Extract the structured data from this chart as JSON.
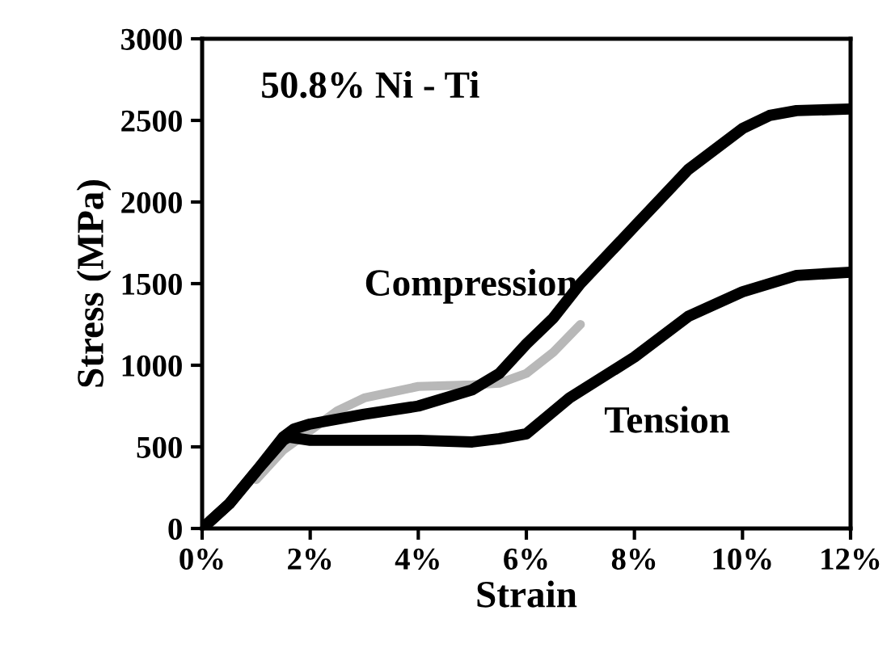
{
  "chart_data": {
    "type": "line",
    "title": "50.8% Ni - Ti",
    "xlabel": "Strain",
    "ylabel": "Stress (MPa)",
    "series": [
      {
        "name": "Compression",
        "color": "#000000",
        "x": [
          0,
          0.5,
          1,
          1.5,
          1.7,
          2,
          3,
          4,
          5,
          5.5,
          6,
          6.5,
          7,
          8,
          9,
          10,
          10.5,
          11,
          12
        ],
        "values": [
          0,
          150,
          350,
          560,
          610,
          640,
          700,
          750,
          850,
          950,
          1130,
          1290,
          1500,
          1850,
          2200,
          2450,
          2530,
          2560,
          2570
        ]
      },
      {
        "name": "Tension",
        "color": "#000000",
        "x": [
          0,
          0.5,
          1,
          1.5,
          1.6,
          2,
          3,
          4,
          5,
          5.5,
          6,
          6.8,
          8,
          9,
          10,
          11,
          12
        ],
        "values": [
          0,
          150,
          350,
          540,
          560,
          540,
          540,
          540,
          530,
          550,
          580,
          800,
          1050,
          1300,
          1450,
          1550,
          1570
        ]
      },
      {
        "color": "#b8b8b8",
        "x": [
          1,
          1.5,
          2,
          2.5,
          3,
          4,
          5,
          5.5,
          6,
          6.5,
          7
        ],
        "values": [
          300,
          480,
          600,
          720,
          800,
          870,
          880,
          890,
          950,
          1080,
          1250
        ]
      }
    ],
    "xlim": [
      0,
      12
    ],
    "ylim": [
      0,
      3000
    ],
    "xticks": [
      {
        "value": 0,
        "label": "0%"
      },
      {
        "value": 2,
        "label": "2%"
      },
      {
        "value": 4,
        "label": "4%"
      },
      {
        "value": 6,
        "label": "6%"
      },
      {
        "value": 8,
        "label": "8%"
      },
      {
        "value": 10,
        "label": "10%"
      },
      {
        "value": 12,
        "label": "12%"
      }
    ],
    "yticks": [
      0,
      500,
      1000,
      1500,
      2000,
      2500,
      3000
    ],
    "grid": false,
    "legend": false
  }
}
